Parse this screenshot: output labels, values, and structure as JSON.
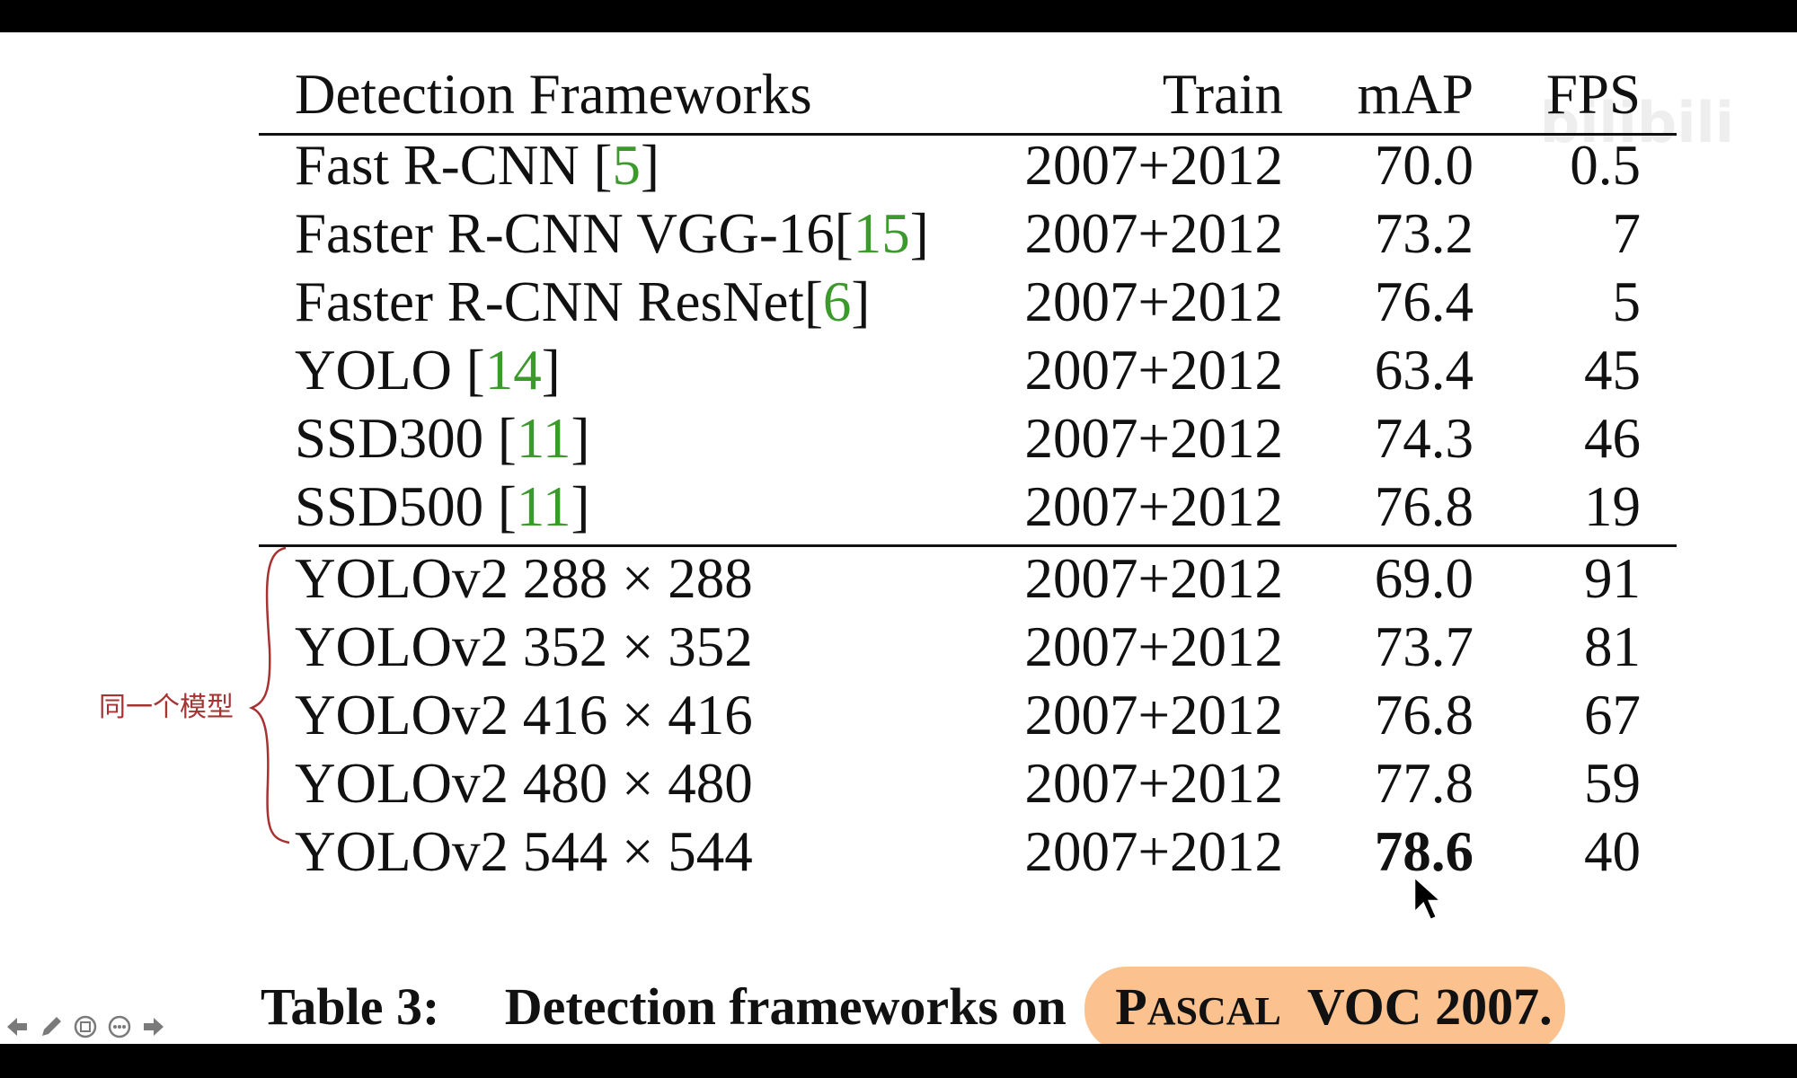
{
  "table": {
    "headers": {
      "name": "Detection Frameworks",
      "train": "Train",
      "map": "mAP",
      "fps": "FPS"
    },
    "rows": [
      {
        "name": "Fast R-CNN [",
        "cite": "5",
        "close": "]",
        "train": "2007+2012",
        "map": "70.0",
        "fps": "0.5"
      },
      {
        "name": "Faster R-CNN VGG-16[",
        "cite": "15",
        "close": "]",
        "train": "2007+2012",
        "map": "73.2",
        "fps": "7"
      },
      {
        "name": "Faster R-CNN ResNet[",
        "cite": "6",
        "close": "]",
        "train": "2007+2012",
        "map": "76.4",
        "fps": "5"
      },
      {
        "name": "YOLO [",
        "cite": "14",
        "close": "]",
        "train": "2007+2012",
        "map": "63.4",
        "fps": "45"
      },
      {
        "name": "SSD300 [",
        "cite": "11",
        "close": "]",
        "train": "2007+2012",
        "map": "74.3",
        "fps": "46"
      },
      {
        "name": "SSD500 [",
        "cite": "11",
        "close": "]",
        "train": "2007+2012",
        "map": "76.8",
        "fps": "19"
      },
      {
        "name": "YOLOv2 288 × 288",
        "cite": "",
        "close": "",
        "train": "2007+2012",
        "map": "69.0",
        "fps": "91"
      },
      {
        "name": "YOLOv2 352 × 352",
        "cite": "",
        "close": "",
        "train": "2007+2012",
        "map": "73.7",
        "fps": "81"
      },
      {
        "name": "YOLOv2 416 × 416",
        "cite": "",
        "close": "",
        "train": "2007+2012",
        "map": "76.8",
        "fps": "67"
      },
      {
        "name": "YOLOv2 480 × 480",
        "cite": "",
        "close": "",
        "train": "2007+2012",
        "map": "77.8",
        "fps": "59"
      },
      {
        "name": "YOLOv2 544 × 544",
        "cite": "",
        "close": "",
        "train": "2007+2012",
        "map": "78.6",
        "fps": "40"
      }
    ]
  },
  "annotation": {
    "note": "同一个模型",
    "color": "#a83232"
  },
  "caption": {
    "label": "Table 3:",
    "text": "Detection frameworks on",
    "p": "P",
    "ascal": "ASCAL",
    "rest": "VOC 2007.",
    "highlight_color": "#fbc290"
  },
  "watermark": "bilibili",
  "colors": {
    "citation": "#3b9a2b",
    "background": "#ffffff",
    "frame": "#000000"
  },
  "toolbar": {
    "icons": [
      "arrow-left-icon",
      "pen-icon",
      "slides-icon",
      "more-icon",
      "arrow-right-icon"
    ]
  }
}
